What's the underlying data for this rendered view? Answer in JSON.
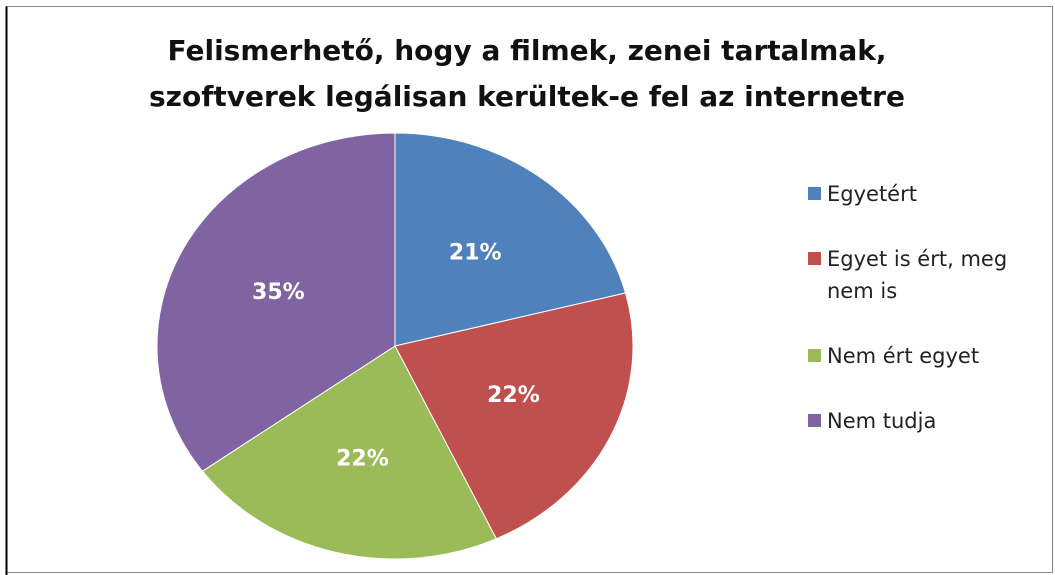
{
  "chart_data": {
    "type": "pie",
    "title": [
      "Felismerhető, hogy a filmek, zenei tartalmak,",
      "szoftverek legálisan kerültek-e fel az internetre"
    ],
    "categories": [
      "Egyetért",
      "Egyet is ért, meg nem is",
      "Nem ért egyet",
      "Nem tudja"
    ],
    "values": [
      21,
      22,
      22,
      35
    ],
    "value_labels": [
      "21%",
      "22%",
      "22%",
      "35%"
    ],
    "colors": [
      "#4F81BD",
      "#C0504D",
      "#9BBB59",
      "#8064A2"
    ],
    "legend": "right"
  }
}
